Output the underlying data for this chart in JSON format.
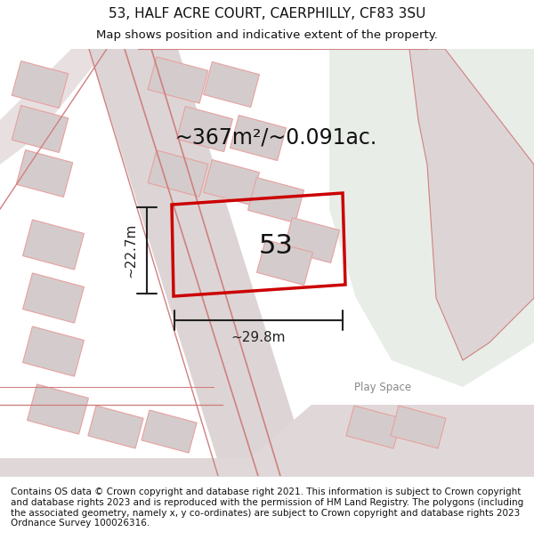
{
  "title_line1": "53, HALF ACRE COURT, CAERPHILLY, CF83 3SU",
  "title_line2": "Map shows position and indicative extent of the property.",
  "area_text": "~367m²/~0.091ac.",
  "label_53": "53",
  "dim_height": "~22.7m",
  "dim_width": "~29.8m",
  "play_space_label": "Play Space",
  "footer_text": "Contains OS data © Crown copyright and database right 2021. This information is subject to Crown copyright and database rights 2023 and is reproduced with the permission of HM Land Registry. The polygons (including the associated geometry, namely x, y co-ordinates) are subject to Crown copyright and database rights 2023 Ordnance Survey 100026316.",
  "bg_color_main": "#f0eeee",
  "bg_color_green": "#e8ede8",
  "plot_color": "#cc0000",
  "road_color": "#f0c0c0",
  "building_color": "#d8d0d0",
  "dim_color": "#222222",
  "title_fontsize": 11,
  "subtitle_fontsize": 9.5,
  "area_fontsize": 17,
  "label_53_fontsize": 22,
  "dim_fontsize": 11,
  "footer_fontsize": 7.5
}
